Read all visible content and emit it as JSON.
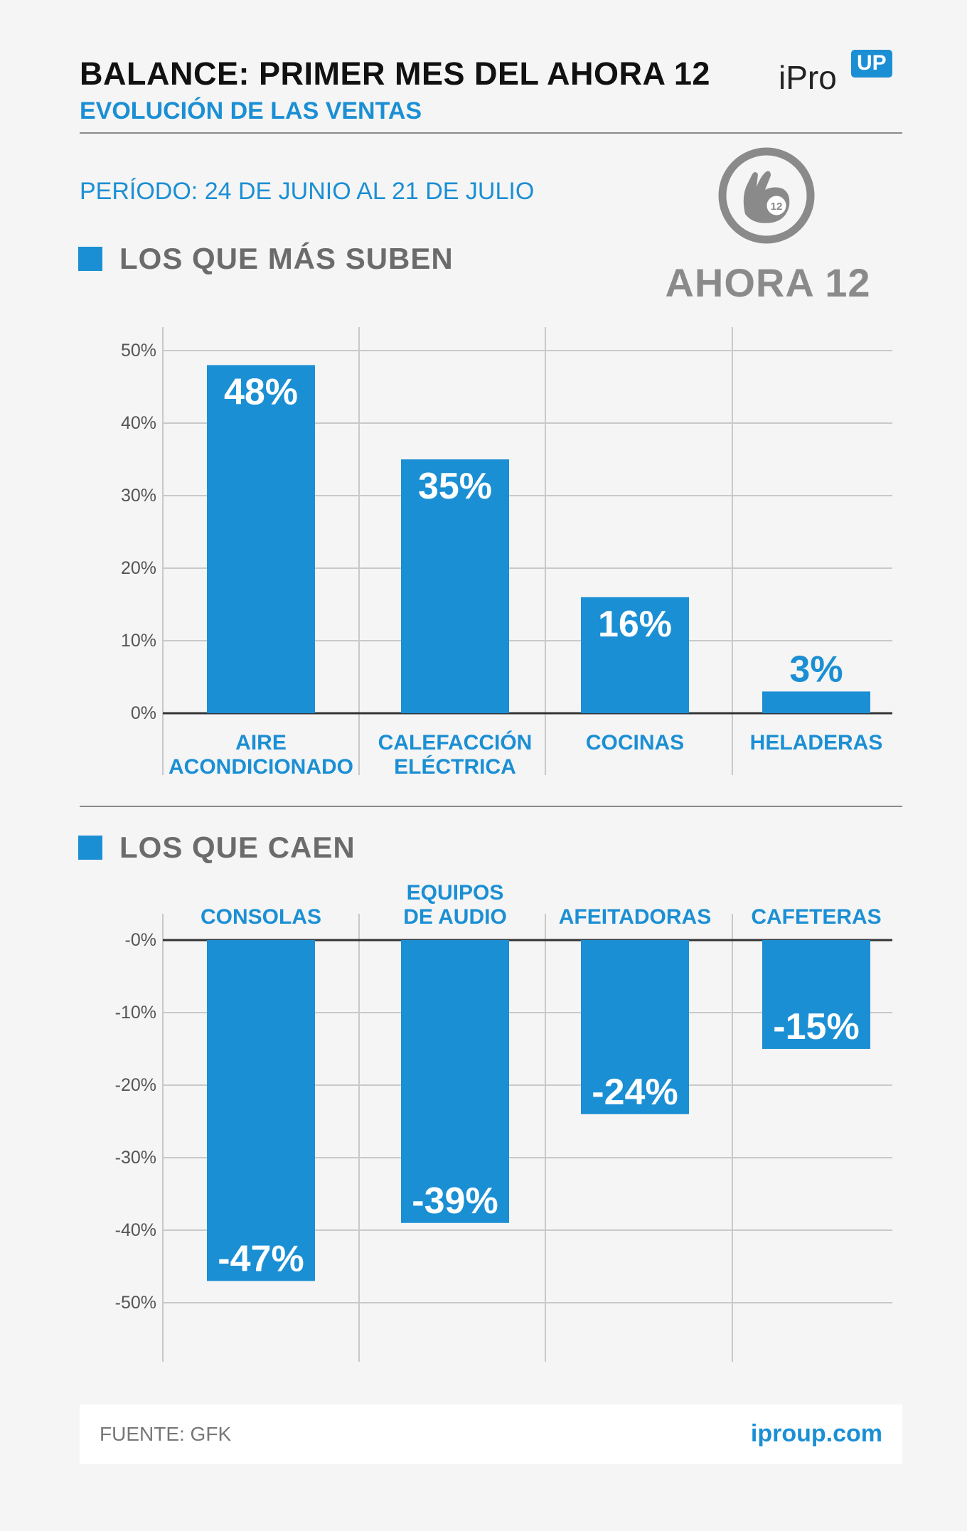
{
  "header": {
    "title": "BALANCE: PRIMER MES DEL AHORA 12",
    "subtitle": "EVOLUCIÓN DE LAS VENTAS",
    "brand_ipro": "iPro",
    "brand_up": "UP"
  },
  "period": "PERÍODO: 24 DE JUNIO AL 21 DE JULIO",
  "logo": {
    "word": "AHORA 12",
    "badge": "12",
    "icon": "hand-twelve-icon"
  },
  "sections": {
    "up_title": "LOS QUE MÁS SUBEN",
    "down_title": "LOS QUE CAEN"
  },
  "colors": {
    "accent": "#1b8fd4",
    "grid": "#c9c9c9",
    "bar_text": "#ffffff",
    "axis_text": "#555555"
  },
  "chart_data": [
    {
      "type": "bar",
      "title": "LOS QUE MÁS SUBEN",
      "categories": [
        [
          "AIRE",
          "ACONDICIONADO"
        ],
        [
          "CALEFACCIÓN",
          "ELÉCTRICA"
        ],
        [
          "COCINAS"
        ],
        [
          "HELADERAS"
        ]
      ],
      "values": [
        48,
        35,
        16,
        3
      ],
      "value_labels": [
        "48%",
        "35%",
        "16%",
        "3%"
      ],
      "yticks": [
        "0%",
        "10%",
        "20%",
        "30%",
        "40%",
        "50%"
      ],
      "ytick_values": [
        0,
        10,
        20,
        30,
        40,
        50
      ],
      "ylim": [
        0,
        50
      ],
      "grid": true
    },
    {
      "type": "bar",
      "title": "LOS QUE CAEN",
      "categories": [
        [
          "CONSOLAS"
        ],
        [
          "EQUIPOS",
          "DE  AUDIO"
        ],
        [
          "AFEITADORAS"
        ],
        [
          "CAFETERAS"
        ]
      ],
      "values": [
        -47,
        -39,
        -24,
        -15
      ],
      "value_labels": [
        "-47%",
        "-39%",
        "-24%",
        "-15%"
      ],
      "yticks": [
        "-0%",
        "-10%",
        "-20%",
        "-30%",
        "-40%",
        "-50%"
      ],
      "ytick_values": [
        0,
        -10,
        -20,
        -30,
        -40,
        -50
      ],
      "ylim": [
        -50,
        0
      ],
      "grid": true
    }
  ],
  "footer": {
    "source": "FUENTE: GFK",
    "url": "iproup.com"
  }
}
